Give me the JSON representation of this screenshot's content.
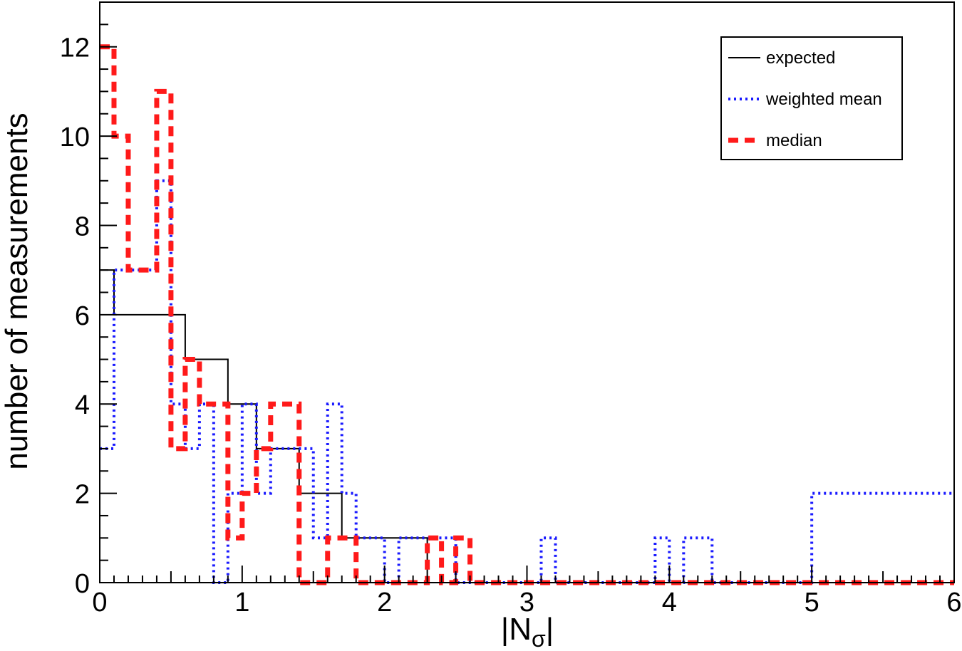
{
  "chart_data": {
    "type": "step-histogram",
    "xlabel": "|N",
    "xlabel_subscript": "σ",
    "xlabel_suffix": "|",
    "ylabel": "number of measurements",
    "xlim": [
      0,
      6
    ],
    "ylim": [
      0,
      13
    ],
    "x_major_ticks": [
      0,
      1,
      2,
      3,
      4,
      5,
      6
    ],
    "x_tick_labels": [
      "0",
      "1",
      "2",
      "3",
      "4",
      "5",
      "6"
    ],
    "y_major_ticks": [
      0,
      2,
      4,
      6,
      8,
      10,
      12
    ],
    "y_tick_labels": [
      "0",
      "2",
      "4",
      "6",
      "8",
      "10",
      "12"
    ],
    "grid": false,
    "legend_position": "top-right",
    "series": [
      {
        "name": "expected",
        "color": "#000000",
        "style": "solid",
        "edges": [
          0,
          0.1,
          0.6,
          0.9,
          1.1,
          1.4,
          1.7,
          2.3,
          6
        ],
        "values": [
          7,
          6,
          5,
          4,
          3,
          2,
          1,
          0
        ]
      },
      {
        "name": "weighted mean",
        "color": "#1a1aff",
        "style": "dotted",
        "edges": [
          0,
          0.1,
          0.4,
          0.5,
          0.6,
          0.7,
          0.8,
          0.9,
          1.0,
          1.1,
          1.2,
          1.3,
          1.5,
          1.6,
          1.7,
          1.8,
          1.9,
          2.0,
          2.1,
          2.3,
          2.5,
          3.1,
          3.2,
          3.9,
          4.0,
          4.1,
          4.3,
          5.0,
          6.0
        ],
        "values": [
          3,
          7,
          9,
          4,
          3,
          4,
          0,
          2,
          4,
          2,
          3,
          3,
          1,
          4,
          2,
          1,
          1,
          0,
          1,
          1,
          0,
          1,
          0,
          1,
          0,
          1,
          0,
          2
        ]
      },
      {
        "name": "median",
        "color": "#ff1a1a",
        "style": "dashed",
        "edges": [
          0,
          0.1,
          0.2,
          0.4,
          0.5,
          0.6,
          0.7,
          0.9,
          1.0,
          1.1,
          1.2,
          1.4,
          1.6,
          1.8,
          2.3,
          2.4,
          2.5,
          2.6,
          6.0
        ],
        "values": [
          12,
          10,
          7,
          11,
          3,
          5,
          4,
          1,
          2,
          3,
          4,
          0,
          1,
          0,
          1,
          0,
          1,
          0
        ]
      }
    ]
  }
}
